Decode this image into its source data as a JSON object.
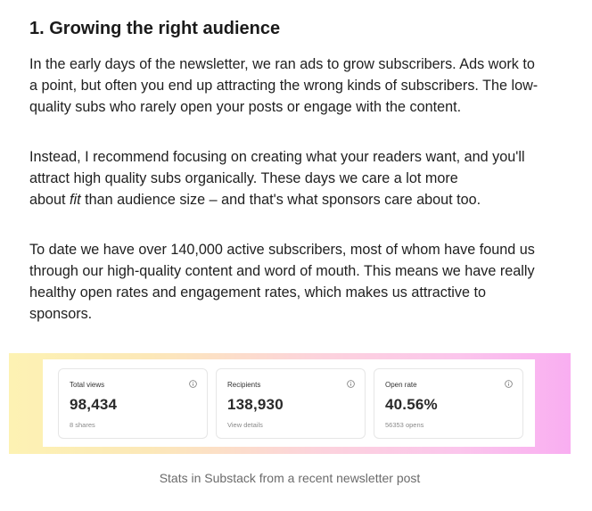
{
  "section": {
    "heading": "1. Growing the right audience",
    "paragraph1": {
      "line1": "In the early days of the newsletter, we ran ads to grow subscribers. Ads work to",
      "line2": "a point, but often you end up attracting the wrong kinds of subscribers. The low-",
      "line3": "quality subs who rarely open your posts or engage with the content."
    },
    "paragraph2": {
      "line1": "Instead, I recommend focusing on creating what your readers want, and you'll",
      "line2": "attract high quality subs organically. These days we care a lot more",
      "line3_before": "about ",
      "line3_emphasis": "fit",
      "line3_after": " than audience size – and that's what sponsors care about too."
    },
    "paragraph3": {
      "line1": "To date we have over 140,000 active subscribers, most of whom have found us",
      "line2": "through our high-quality content and word of mouth. This means we have really",
      "line3": "healthy open rates and engagement rates, which makes us attractive to",
      "line4": "sponsors."
    }
  },
  "stats": [
    {
      "label": "Total views",
      "value": "98,434",
      "sub": "8 shares",
      "icon": "info-icon"
    },
    {
      "label": "Recipients",
      "value": "138,930",
      "sub": "View details",
      "icon": "info-icon"
    },
    {
      "label": "Open rate",
      "value": "40.56%",
      "sub": "56353 opens",
      "icon": "info-icon"
    }
  ],
  "figure": {
    "caption": "Stats in Substack from a recent newsletter post",
    "gradient_colors": [
      "#fdf2b3",
      "#fcd3dc",
      "#f9aef1"
    ]
  }
}
